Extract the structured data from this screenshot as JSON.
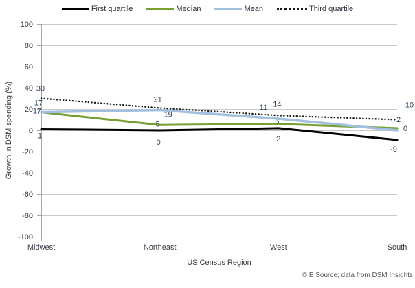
{
  "chart_data": {
    "type": "line",
    "categories": [
      "Midwest",
      "Northeast",
      "West",
      "South"
    ],
    "series": [
      {
        "name": "First quartile",
        "values": [
          1,
          0,
          2,
          -9
        ],
        "color": "#000000",
        "style": "solid"
      },
      {
        "name": "Median",
        "values": [
          17,
          5,
          6,
          2
        ],
        "color": "#77A033",
        "style": "solid"
      },
      {
        "name": "Mean",
        "values": [
          17,
          19,
          11,
          0
        ],
        "color": "#A1C0E0",
        "style": "solid"
      },
      {
        "name": "Third quartile",
        "values": [
          30,
          21,
          14,
          10
        ],
        "color": "#1A1A1A",
        "style": "dotted"
      }
    ],
    "title": "",
    "xlabel": "US Census Region",
    "ylabel": "Growth in DSM spending (%)",
    "ylim": [
      -100,
      100
    ],
    "ytick_step": 20,
    "grid": true,
    "legend_position": "top",
    "data_labels": true
  },
  "footer": {
    "text": "© E Source; data from DSM Insights"
  },
  "colors": {
    "gridline": "#C8C8C8",
    "axis_line": "#A6A6A6",
    "axis_text": "#363B43",
    "data_label_text": "#2C4258",
    "footer_text": "#595959",
    "background": "#FFFFFF"
  }
}
